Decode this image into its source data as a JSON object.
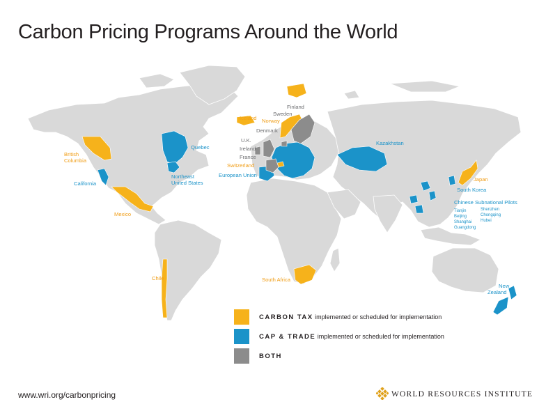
{
  "title": "Carbon Pricing Programs Around the World",
  "colors": {
    "carbon_tax": "#f6b21b",
    "cap_trade": "#1b93c9",
    "both": "#8c8c8c",
    "land": "#d9d9d9",
    "border": "#ffffff"
  },
  "labels": {
    "british_columbia": "British\nColumbia",
    "quebec": "Quebec",
    "california": "California",
    "northeast_us": "Northeast\nUnited States",
    "mexico": "Mexico",
    "chile": "Chile",
    "iceland": "Iceland",
    "norway": "Norway",
    "finland": "Finland",
    "sweden": "Sweden",
    "denmark": "Denmark",
    "uk": "U.K.",
    "ireland": "Ireland",
    "france": "France",
    "switzerland": "Switzerland",
    "european_union": "European Union",
    "kazakhstan": "Kazakhstan",
    "japan": "Japan",
    "south_korea": "South Korea",
    "chinese_pilots_title": "Chinese Subnational Pilots",
    "chinese_pilots_col1": [
      "Tianjin",
      "Beijing",
      "Shanghai",
      "Guangdong"
    ],
    "chinese_pilots_col2": [
      "Shenzhen",
      "Chongqing",
      "Hubei"
    ],
    "south_africa": "South Africa",
    "new_zealand": "New\nZealand"
  },
  "legend": [
    {
      "key": "CARBON TAX",
      "text": "implemented or scheduled for implementation",
      "color": "#f6b21b"
    },
    {
      "key": "CAP & TRADE",
      "text": "implemented or scheduled for implementation",
      "color": "#1b93c9"
    },
    {
      "key": "BOTH",
      "text": "",
      "color": "#8c8c8c"
    }
  ],
  "footer_url": "www.wri.org/carbonpricing",
  "organization": "WORLD RESOURCES INSTITUTE"
}
